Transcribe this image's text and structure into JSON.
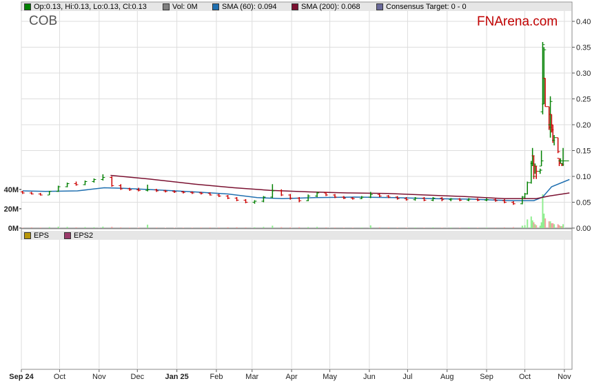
{
  "ticker": "COB",
  "brand": "FNArena.com",
  "legend": {
    "ohlc": {
      "label": "Op:0.13, Hi:0.13, Lo:0.13, Cl:0.13",
      "color": "#008000"
    },
    "vol": {
      "label": "Vol: 0M",
      "color": "#808080"
    },
    "sma60": {
      "label": "SMA (60): 0.094",
      "color": "#1f6fb0"
    },
    "sma200": {
      "label": "SMA (200): 0.068",
      "color": "#7a1030"
    },
    "target": {
      "label": "Consensus Target: 0 - 0",
      "color": "#6a6a9a"
    }
  },
  "lower_legend": {
    "eps": {
      "label": "EPS",
      "color": "#b8960a"
    },
    "eps2": {
      "label": "EPS2",
      "color": "#9a3a6a"
    }
  },
  "colors": {
    "up": "#008000",
    "down": "#cc0000",
    "vol_up": "#90ee90",
    "vol_down": "#f4a0a0",
    "grid": "#dddddd"
  },
  "chart_data": {
    "type": "ohlc",
    "x_range": [
      "2024-09-01",
      "2025-11-07"
    ],
    "ylim": [
      0,
      0.42
    ],
    "yticks": [
      "0.00",
      "0.05",
      "0.10",
      "0.15",
      "0.20",
      "0.25",
      "0.30",
      "0.35",
      "0.40"
    ],
    "volume_ylim_M": [
      0,
      60
    ],
    "volume_ticks": [
      "0M",
      "20M",
      "40M"
    ],
    "xticks": [
      {
        "date": "2024-09-01",
        "label": "Sep 24",
        "bold": true
      },
      {
        "date": "2024-10-01",
        "label": "Oct"
      },
      {
        "date": "2024-11-01",
        "label": "Nov"
      },
      {
        "date": "2024-12-01",
        "label": "Dec"
      },
      {
        "date": "2025-01-01",
        "label": "Jan 25",
        "bold": true
      },
      {
        "date": "2025-02-01",
        "label": "Feb"
      },
      {
        "date": "2025-03-01",
        "label": "Mar"
      },
      {
        "date": "2025-04-01",
        "label": "Apr"
      },
      {
        "date": "2025-05-01",
        "label": "May"
      },
      {
        "date": "2025-06-01",
        "label": "Jun"
      },
      {
        "date": "2025-07-01",
        "label": "Jul"
      },
      {
        "date": "2025-08-01",
        "label": "Aug"
      },
      {
        "date": "2025-09-01",
        "label": "Sep"
      },
      {
        "date": "2025-10-01",
        "label": "Oct"
      },
      {
        "date": "2025-11-01",
        "label": "Nov"
      }
    ],
    "columns": [
      "date",
      "open",
      "high",
      "low",
      "close",
      "volume_M"
    ],
    "bars": [
      [
        "2024-09-02",
        0.07,
        0.072,
        0.066,
        0.068,
        0.5
      ],
      [
        "2024-09-09",
        0.068,
        0.07,
        0.065,
        0.066,
        0.8
      ],
      [
        "2024-09-16",
        0.066,
        0.068,
        0.063,
        0.064,
        0.6
      ],
      [
        "2024-09-23",
        0.064,
        0.072,
        0.064,
        0.071,
        1.0
      ],
      [
        "2024-09-30",
        0.071,
        0.082,
        0.07,
        0.08,
        1.5
      ],
      [
        "2024-10-07",
        0.08,
        0.088,
        0.079,
        0.086,
        1.2
      ],
      [
        "2024-10-14",
        0.086,
        0.09,
        0.082,
        0.084,
        0.8
      ],
      [
        "2024-10-21",
        0.084,
        0.092,
        0.083,
        0.09,
        1.0
      ],
      [
        "2024-10-28",
        0.09,
        0.096,
        0.088,
        0.094,
        0.9
      ],
      [
        "2024-11-04",
        0.094,
        0.104,
        0.092,
        0.098,
        1.5
      ],
      [
        "2024-11-11",
        0.098,
        0.1,
        0.08,
        0.082,
        1.3
      ],
      [
        "2024-11-18",
        0.082,
        0.085,
        0.074,
        0.076,
        0.8
      ],
      [
        "2024-11-25",
        0.076,
        0.078,
        0.072,
        0.074,
        0.6
      ],
      [
        "2024-12-02",
        0.074,
        0.078,
        0.071,
        0.073,
        0.5
      ],
      [
        "2024-12-09",
        0.073,
        0.084,
        0.071,
        0.074,
        3.5
      ],
      [
        "2024-12-16",
        0.074,
        0.076,
        0.07,
        0.072,
        0.6
      ],
      [
        "2024-12-23",
        0.072,
        0.074,
        0.069,
        0.071,
        0.4
      ],
      [
        "2024-12-30",
        0.071,
        0.073,
        0.068,
        0.07,
        0.4
      ],
      [
        "2025-01-06",
        0.07,
        0.072,
        0.067,
        0.069,
        0.5
      ],
      [
        "2025-01-13",
        0.069,
        0.071,
        0.066,
        0.068,
        0.5
      ],
      [
        "2025-01-20",
        0.068,
        0.07,
        0.065,
        0.067,
        0.6
      ],
      [
        "2025-01-27",
        0.067,
        0.069,
        0.063,
        0.064,
        0.7
      ],
      [
        "2025-02-03",
        0.064,
        0.066,
        0.06,
        0.062,
        0.6
      ],
      [
        "2025-02-10",
        0.062,
        0.064,
        0.056,
        0.058,
        0.8
      ],
      [
        "2025-02-17",
        0.058,
        0.06,
        0.052,
        0.054,
        0.9
      ],
      [
        "2025-02-24",
        0.054,
        0.056,
        0.048,
        0.05,
        0.7
      ],
      [
        "2025-03-03",
        0.05,
        0.054,
        0.047,
        0.052,
        0.8
      ],
      [
        "2025-03-10",
        0.052,
        0.062,
        0.05,
        0.06,
        1.2
      ],
      [
        "2025-03-17",
        0.06,
        0.085,
        0.058,
        0.072,
        2.5
      ],
      [
        "2025-03-24",
        0.072,
        0.075,
        0.062,
        0.064,
        1.0
      ],
      [
        "2025-03-31",
        0.064,
        0.066,
        0.055,
        0.058,
        0.8
      ],
      [
        "2025-04-07",
        0.058,
        0.06,
        0.05,
        0.053,
        0.9
      ],
      [
        "2025-04-14",
        0.053,
        0.065,
        0.052,
        0.062,
        1.0
      ],
      [
        "2025-04-21",
        0.062,
        0.07,
        0.06,
        0.068,
        1.2
      ],
      [
        "2025-04-28",
        0.068,
        0.07,
        0.062,
        0.064,
        0.7
      ],
      [
        "2025-05-05",
        0.064,
        0.066,
        0.058,
        0.06,
        0.6
      ],
      [
        "2025-05-12",
        0.06,
        0.062,
        0.056,
        0.058,
        0.5
      ],
      [
        "2025-05-19",
        0.058,
        0.06,
        0.055,
        0.057,
        0.5
      ],
      [
        "2025-05-26",
        0.057,
        0.062,
        0.056,
        0.06,
        0.6
      ],
      [
        "2025-06-02",
        0.06,
        0.07,
        0.058,
        0.065,
        2.8
      ],
      [
        "2025-06-09",
        0.065,
        0.067,
        0.06,
        0.062,
        0.8
      ],
      [
        "2025-06-16",
        0.062,
        0.064,
        0.058,
        0.06,
        0.6
      ],
      [
        "2025-06-23",
        0.06,
        0.062,
        0.055,
        0.057,
        0.5
      ],
      [
        "2025-06-30",
        0.057,
        0.06,
        0.053,
        0.055,
        0.5
      ],
      [
        "2025-07-07",
        0.055,
        0.06,
        0.053,
        0.058,
        0.6
      ],
      [
        "2025-07-14",
        0.058,
        0.06,
        0.052,
        0.054,
        0.5
      ],
      [
        "2025-07-21",
        0.054,
        0.06,
        0.052,
        0.058,
        0.7
      ],
      [
        "2025-07-28",
        0.058,
        0.06,
        0.052,
        0.055,
        0.5
      ],
      [
        "2025-08-04",
        0.055,
        0.058,
        0.052,
        0.056,
        0.6
      ],
      [
        "2025-08-11",
        0.056,
        0.058,
        0.052,
        0.054,
        0.5
      ],
      [
        "2025-08-18",
        0.054,
        0.058,
        0.052,
        0.056,
        0.6
      ],
      [
        "2025-08-25",
        0.056,
        0.058,
        0.052,
        0.054,
        0.5
      ],
      [
        "2025-09-01",
        0.054,
        0.058,
        0.052,
        0.055,
        0.5
      ],
      [
        "2025-09-08",
        0.055,
        0.057,
        0.051,
        0.053,
        0.6
      ],
      [
        "2025-09-15",
        0.053,
        0.056,
        0.048,
        0.05,
        0.8
      ],
      [
        "2025-09-22",
        0.05,
        0.052,
        0.045,
        0.047,
        1.0
      ],
      [
        "2025-09-29",
        0.047,
        0.062,
        0.046,
        0.06,
        2.5
      ],
      [
        "2025-10-01",
        0.06,
        0.068,
        0.058,
        0.066,
        3.0
      ],
      [
        "2025-10-03",
        0.066,
        0.09,
        0.065,
        0.088,
        9.0
      ],
      [
        "2025-10-06",
        0.088,
        0.13,
        0.086,
        0.125,
        12.0
      ],
      [
        "2025-10-07",
        0.125,
        0.155,
        0.12,
        0.14,
        8.0
      ],
      [
        "2025-10-08",
        0.14,
        0.14,
        0.095,
        0.1,
        6.0
      ],
      [
        "2025-10-09",
        0.1,
        0.125,
        0.105,
        0.12,
        4.0
      ],
      [
        "2025-10-10",
        0.12,
        0.12,
        0.095,
        0.11,
        3.0
      ],
      [
        "2025-10-13",
        0.11,
        0.115,
        0.105,
        0.112,
        2.5
      ],
      [
        "2025-10-14",
        0.12,
        0.15,
        0.12,
        0.13,
        6.0
      ],
      [
        "2025-10-15",
        0.225,
        0.36,
        0.22,
        0.355,
        35.0
      ],
      [
        "2025-10-16",
        0.24,
        0.35,
        0.24,
        0.345,
        15.0
      ],
      [
        "2025-10-17",
        0.29,
        0.29,
        0.235,
        0.235,
        10.0
      ],
      [
        "2025-10-20",
        0.235,
        0.235,
        0.19,
        0.195,
        7.0
      ],
      [
        "2025-10-21",
        0.2,
        0.255,
        0.175,
        0.245,
        7.0
      ],
      [
        "2025-10-22",
        0.22,
        0.22,
        0.185,
        0.19,
        5.0
      ],
      [
        "2025-10-23",
        0.2,
        0.2,
        0.165,
        0.17,
        5.0
      ],
      [
        "2025-10-24",
        0.17,
        0.18,
        0.16,
        0.175,
        4.0
      ],
      [
        "2025-10-27",
        0.175,
        0.175,
        0.145,
        0.148,
        4.0
      ],
      [
        "2025-10-28",
        0.135,
        0.135,
        0.12,
        0.13,
        3.0
      ],
      [
        "2025-10-29",
        0.13,
        0.135,
        0.125,
        0.13,
        2.0
      ],
      [
        "2025-10-30",
        0.125,
        0.125,
        0.12,
        0.123,
        2.0
      ],
      [
        "2025-10-31",
        0.125,
        0.155,
        0.12,
        0.13,
        4.0
      ],
      [
        "2025-11-03",
        0.13,
        0.13,
        0.13,
        0.13,
        0.0
      ]
    ],
    "sma60": [
      [
        "2024-09-02",
        0.072
      ],
      [
        "2024-09-20",
        0.071
      ],
      [
        "2024-10-15",
        0.072
      ],
      [
        "2024-11-05",
        0.078
      ],
      [
        "2024-11-20",
        0.077
      ],
      [
        "2024-12-15",
        0.074
      ],
      [
        "2025-01-15",
        0.07
      ],
      [
        "2025-02-10",
        0.066
      ],
      [
        "2025-03-05",
        0.059
      ],
      [
        "2025-03-25",
        0.057
      ],
      [
        "2025-04-20",
        0.059
      ],
      [
        "2025-05-20",
        0.06
      ],
      [
        "2025-06-20",
        0.059
      ],
      [
        "2025-07-20",
        0.057
      ],
      [
        "2025-08-20",
        0.056
      ],
      [
        "2025-09-20",
        0.053
      ],
      [
        "2025-10-08",
        0.053
      ],
      [
        "2025-10-15",
        0.06
      ],
      [
        "2025-10-22",
        0.08
      ],
      [
        "2025-11-05",
        0.094
      ]
    ],
    "sma200": [
      [
        "2024-11-10",
        0.102
      ],
      [
        "2024-12-10",
        0.095
      ],
      [
        "2025-01-15",
        0.085
      ],
      [
        "2025-02-15",
        0.078
      ],
      [
        "2025-03-15",
        0.073
      ],
      [
        "2025-04-15",
        0.07
      ],
      [
        "2025-05-15",
        0.068
      ],
      [
        "2025-06-15",
        0.067
      ],
      [
        "2025-07-15",
        0.064
      ],
      [
        "2025-08-15",
        0.061
      ],
      [
        "2025-09-15",
        0.057
      ],
      [
        "2025-10-10",
        0.057
      ],
      [
        "2025-10-20",
        0.062
      ],
      [
        "2025-11-05",
        0.068
      ]
    ]
  }
}
